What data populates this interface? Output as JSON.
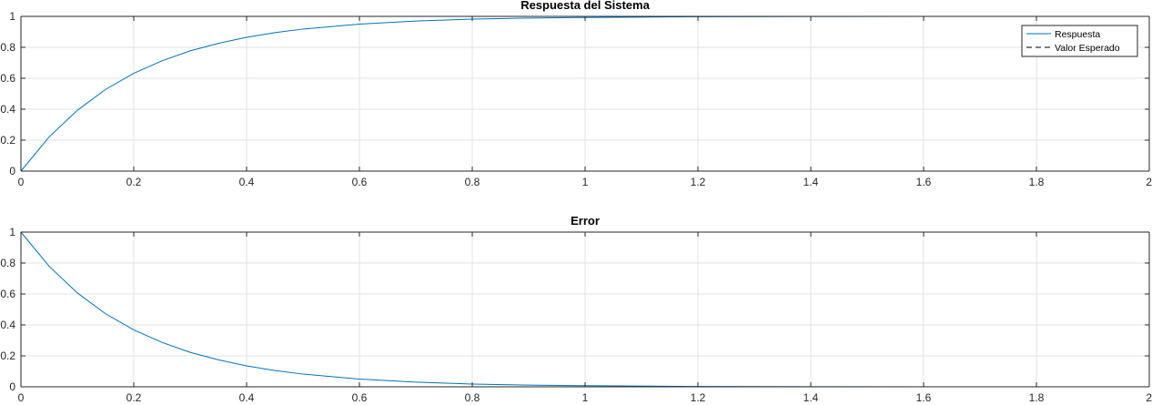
{
  "chart_data": [
    {
      "type": "line",
      "title": "Respuesta del Sistema",
      "xlabel": "",
      "ylabel": "",
      "xlim": [
        0,
        2
      ],
      "ylim": [
        0,
        1
      ],
      "xticks": [
        0,
        0.2,
        0.4,
        0.6,
        0.8,
        1,
        1.2,
        1.4,
        1.6,
        1.8,
        2
      ],
      "xtick_labels": [
        "0",
        "0.2",
        "0.4",
        "0.6",
        "0.8",
        "1",
        "1.2",
        "1.4",
        "1.6",
        "1.8",
        "2"
      ],
      "yticks": [
        0,
        0.2,
        0.4,
        0.6,
        0.8,
        1
      ],
      "ytick_labels": [
        "0",
        "0.2",
        "0.4",
        "0.6",
        "0.8",
        "1"
      ],
      "grid": true,
      "legend": {
        "position": "top-right"
      },
      "series": [
        {
          "name": "Respuesta",
          "style": "solid",
          "color": "#0072BD",
          "x": [
            0,
            0.05,
            0.1,
            0.15,
            0.2,
            0.25,
            0.3,
            0.35,
            0.4,
            0.45,
            0.5,
            0.6,
            0.7,
            0.8,
            0.9,
            1.0,
            1.2,
            1.4,
            1.6,
            1.8,
            2.0
          ],
          "y": [
            0,
            0.221,
            0.393,
            0.528,
            0.632,
            0.713,
            0.777,
            0.826,
            0.865,
            0.895,
            0.918,
            0.95,
            0.97,
            0.982,
            0.989,
            0.993,
            0.998,
            0.999,
            1.0,
            1.0,
            1.0
          ]
        },
        {
          "name": "Valor Esperado",
          "style": "dashed",
          "color": "#000000",
          "x": [
            0,
            2
          ],
          "y": [
            1,
            1
          ]
        }
      ]
    },
    {
      "type": "line",
      "title": "Error",
      "xlabel": "",
      "ylabel": "",
      "xlim": [
        0,
        2
      ],
      "ylim": [
        0,
        1
      ],
      "xticks": [
        0,
        0.2,
        0.4,
        0.6,
        0.8,
        1,
        1.2,
        1.4,
        1.6,
        1.8,
        2
      ],
      "xtick_labels": [
        "0",
        "0.2",
        "0.4",
        "0.6",
        "0.8",
        "1",
        "1.2",
        "1.4",
        "1.6",
        "1.8",
        "2"
      ],
      "yticks": [
        0,
        0.2,
        0.4,
        0.6,
        0.8,
        1
      ],
      "ytick_labels": [
        "0",
        "0.2",
        "0.4",
        "0.6",
        "0.8",
        "1"
      ],
      "grid": true,
      "series": [
        {
          "style": "solid",
          "color": "#0072BD",
          "x": [
            0,
            0.05,
            0.1,
            0.15,
            0.2,
            0.25,
            0.3,
            0.35,
            0.4,
            0.45,
            0.5,
            0.6,
            0.7,
            0.8,
            0.9,
            1.0,
            1.2,
            1.4,
            1.6,
            1.8,
            2.0
          ],
          "y": [
            1,
            0.779,
            0.607,
            0.472,
            0.368,
            0.287,
            0.223,
            0.174,
            0.135,
            0.105,
            0.082,
            0.05,
            0.03,
            0.018,
            0.011,
            0.007,
            0.002,
            0.001,
            0.0,
            0.0,
            0.0
          ]
        }
      ]
    }
  ]
}
